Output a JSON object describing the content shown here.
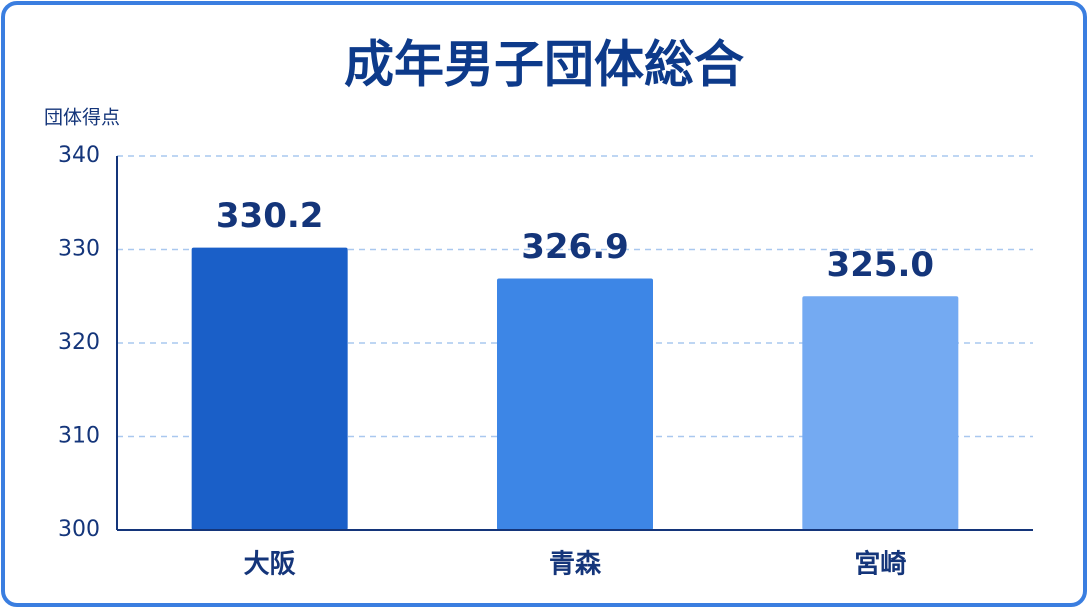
{
  "chart_data": {
    "type": "bar",
    "title": "成年男子団体総合",
    "y_label": "団体得点",
    "categories": [
      "大阪",
      "青森",
      "宮崎"
    ],
    "values": [
      330.2,
      326.9,
      325.0
    ],
    "value_labels": [
      "330.2",
      "326.9",
      "325.0"
    ],
    "colors": [
      "#1a5fc8",
      "#3d86e6",
      "#74aaf2"
    ],
    "ylim": [
      300,
      340
    ],
    "yticks": [
      300,
      310,
      320,
      330,
      340
    ],
    "grid": true
  }
}
